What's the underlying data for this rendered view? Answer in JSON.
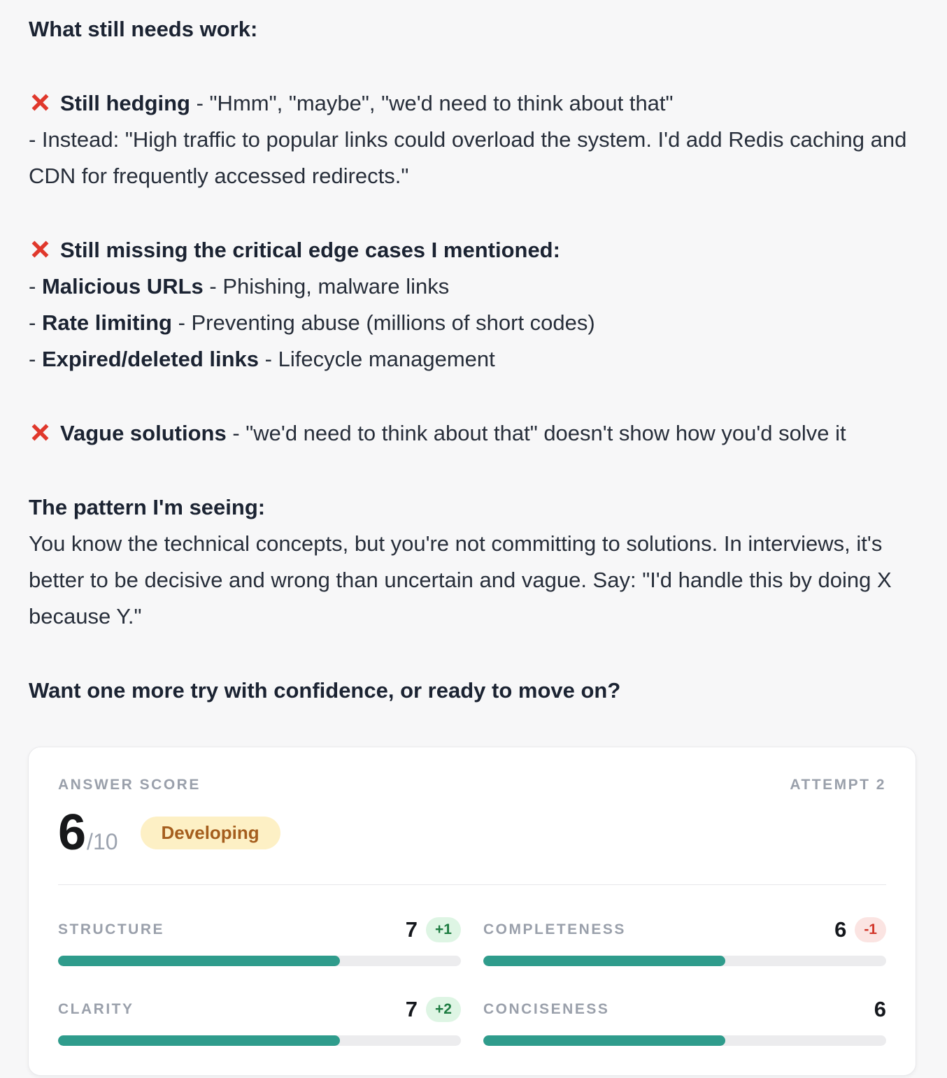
{
  "colors": {
    "cross_red": "#e0382c",
    "bar_fill": "#2f9c8c",
    "bar_track": "#ececee",
    "level_bg": "#fdf0c5",
    "level_text": "#a55e1e",
    "delta_up_bg": "#def5e4",
    "delta_up_text": "#1d7c41",
    "delta_down_bg": "#fbe4e2",
    "delta_down_text": "#d2382c",
    "page_bg": "#f7f7f8",
    "card_bg": "#ffffff"
  },
  "message": {
    "blocks": [
      {
        "lines": [
          [
            {
              "t": "What still needs work:",
              "b": true
            }
          ]
        ]
      },
      {
        "lines": [
          [
            {
              "icon": "cross-icon"
            },
            {
              "t": "Still hedging",
              "b": true
            },
            {
              "t": " - \"Hmm\", \"maybe\", \"we'd need to think about that\""
            }
          ],
          [
            {
              "t": "- Instead: \"High traffic to popular links could overload the system. I'd add Redis caching and CDN for frequently accessed redirects.\""
            }
          ]
        ]
      },
      {
        "lines": [
          [
            {
              "icon": "cross-icon"
            },
            {
              "t": "Still missing the critical edge cases I mentioned:",
              "b": true
            }
          ],
          [
            {
              "t": "- "
            },
            {
              "t": "Malicious URLs",
              "b": true
            },
            {
              "t": " - Phishing, malware links"
            }
          ],
          [
            {
              "t": "- "
            },
            {
              "t": "Rate limiting",
              "b": true
            },
            {
              "t": " - Preventing abuse (millions of short codes)"
            }
          ],
          [
            {
              "t": "- "
            },
            {
              "t": "Expired/deleted links",
              "b": true
            },
            {
              "t": " - Lifecycle management"
            }
          ]
        ]
      },
      {
        "lines": [
          [
            {
              "icon": "cross-icon"
            },
            {
              "t": "Vague solutions",
              "b": true
            },
            {
              "t": " - \"we'd need to think about that\" doesn't show how you'd solve it"
            }
          ]
        ]
      },
      {
        "lines": [
          [
            {
              "t": "The pattern I'm seeing:",
              "b": true
            }
          ],
          [
            {
              "t": "You know the technical concepts, but you're not committing to solutions. In interviews, it's better to be decisive and wrong than uncertain and vague. Say: \"I'd handle this by doing X because Y.\""
            }
          ]
        ]
      },
      {
        "lines": [
          [
            {
              "t": "Want one more try with confidence, or ready to move on?",
              "b": true
            }
          ]
        ]
      }
    ]
  },
  "scorecard": {
    "title": "ANSWER SCORE",
    "attempt": "ATTEMPT 2",
    "score": "6",
    "score_suffix": "/10",
    "level": "Developing",
    "max": 10,
    "metrics": [
      {
        "name": "STRUCTURE",
        "value": 7,
        "delta": "+1",
        "trend": "up"
      },
      {
        "name": "COMPLETENESS",
        "value": 6,
        "delta": "-1",
        "trend": "down"
      },
      {
        "name": "CLARITY",
        "value": 7,
        "delta": "+2",
        "trend": "up"
      },
      {
        "name": "CONCISENESS",
        "value": 6,
        "delta": "",
        "trend": "none"
      }
    ]
  }
}
